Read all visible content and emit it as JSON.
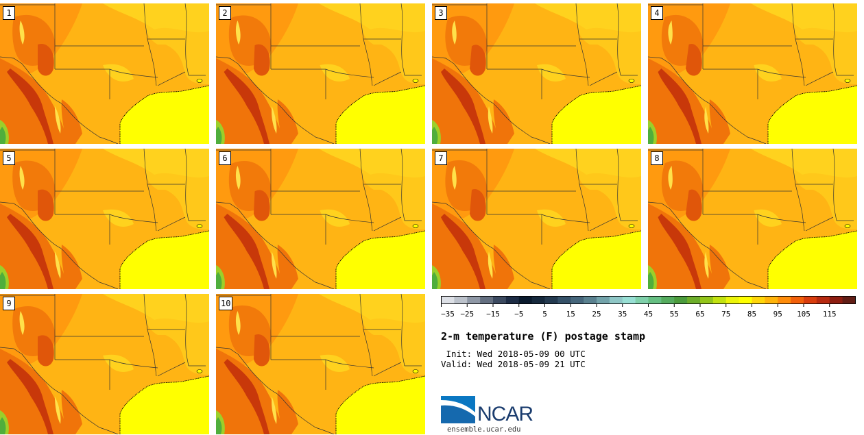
{
  "panels": [
    "1",
    "2",
    "3",
    "4",
    "5",
    "6",
    "7",
    "8",
    "9",
    "10"
  ],
  "colorbar": {
    "colors": [
      "#dde0e6",
      "#bcc2cb",
      "#8f98a6",
      "#646f80",
      "#3c4a60",
      "#1d2c45",
      "#0a1a2d",
      "#16293d",
      "#243a50",
      "#355168",
      "#46667b",
      "#5a818f",
      "#73a3aa",
      "#8fc7c6",
      "#98dfd4",
      "#7fd0aa",
      "#66bf82",
      "#55ab5e",
      "#4b9b3c",
      "#6dae2a",
      "#93c51a",
      "#c2e211",
      "#ecf40a",
      "#ffff00",
      "#ffd60a",
      "#ffb40a",
      "#ff8c0a",
      "#f2600a",
      "#d93d0d",
      "#b72a10",
      "#8d1d10",
      "#611d15"
    ],
    "tick_labels": [
      "−35",
      "−25",
      "−15",
      "−5",
      "5",
      "15",
      "25",
      "35",
      "45",
      "55",
      "65",
      "75",
      "85",
      "95",
      "105",
      "115"
    ]
  },
  "title": "2-m temperature (F) postage stamp",
  "init_line": " Init: Wed 2018-05-09 00 UTC",
  "valid_line": "Valid: Wed 2018-05-09 21 UTC",
  "logo_text": "NCAR",
  "url": "ensemble.ucar.edu"
}
